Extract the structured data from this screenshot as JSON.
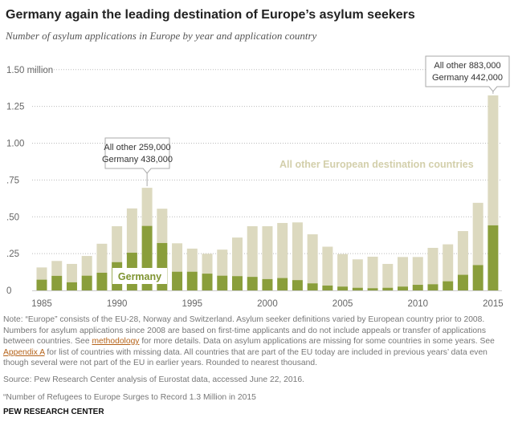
{
  "chart_data": {
    "type": "bar",
    "stacked": true,
    "title": "Germany again the leading destination of Europe’s asylum seekers",
    "subtitle": "Number of asylum applications in Europe by year and application country",
    "unit": "million",
    "ylim": [
      0,
      1.5
    ],
    "y_ticks": [
      {
        "v": 0,
        "label": "0"
      },
      {
        "v": 0.25,
        "label": ".25"
      },
      {
        "v": 0.5,
        "label": ".50"
      },
      {
        "v": 0.75,
        "label": ".75"
      },
      {
        "v": 1.0,
        "label": "1.00"
      },
      {
        "v": 1.25,
        "label": "1.25"
      },
      {
        "v": 1.5,
        "label": "1.50 million"
      }
    ],
    "x_ticks": [
      1985,
      1990,
      1995,
      2000,
      2005,
      2010,
      2015
    ],
    "categories": [
      1985,
      1986,
      1987,
      1988,
      1989,
      1990,
      1991,
      1992,
      1993,
      1994,
      1995,
      1996,
      1997,
      1998,
      1999,
      2000,
      2001,
      2002,
      2003,
      2004,
      2005,
      2006,
      2007,
      2008,
      2009,
      2010,
      2011,
      2012,
      2013,
      2014,
      2015
    ],
    "series": [
      {
        "name": "Germany",
        "color": "#8a9e3b",
        "values": [
          0.073,
          0.099,
          0.055,
          0.1,
          0.12,
          0.192,
          0.256,
          0.438,
          0.322,
          0.127,
          0.127,
          0.114,
          0.1,
          0.097,
          0.092,
          0.077,
          0.084,
          0.07,
          0.048,
          0.033,
          0.026,
          0.018,
          0.015,
          0.018,
          0.026,
          0.038,
          0.042,
          0.062,
          0.106,
          0.172,
          0.442
        ]
      },
      {
        "name": "All other European destination countries",
        "color": "#dcd9bf",
        "values": [
          0.083,
          0.101,
          0.125,
          0.134,
          0.197,
          0.244,
          0.301,
          0.259,
          0.233,
          0.193,
          0.157,
          0.135,
          0.177,
          0.262,
          0.344,
          0.359,
          0.374,
          0.392,
          0.333,
          0.264,
          0.221,
          0.193,
          0.214,
          0.162,
          0.201,
          0.189,
          0.247,
          0.251,
          0.297,
          0.423,
          0.883
        ]
      }
    ],
    "annotations": [
      {
        "year": 1992,
        "lines": [
          "All other 259,000",
          "Germany 438,000"
        ]
      },
      {
        "year": 2015,
        "lines": [
          "All other 883,000",
          "Germany 442,000"
        ]
      }
    ],
    "series_labels": {
      "germany": "Germany",
      "other": "All other European destination countries"
    },
    "grid": true
  },
  "footer": {
    "note_a": "Note: “Europe” consists of the EU-28, Norway and Switzerland. Asylum seeker definitions varied by European country prior to 2008. Numbers for asylum applications since 2008 are based on first-time applicants and do not include appeals or transfer of applications between countries. See ",
    "link1": "methodology",
    "note_b": " for more details. Data on asylum applications are missing for some countries in some years. See ",
    "link2": "Appendix A",
    "note_c": " for list of countries with missing data. All countries that are part of the EU today are included in previous years’ data even though several were not part of the EU in earlier years. Rounded to nearest thousand.",
    "source": "Source: Pew Research Center analysis of Eurostat data, accessed June 22, 2016.",
    "ref": "“Number of Refugees to Europe Surges to Record 1.3 Million in 2015",
    "org": "PEW RESEARCH CENTER"
  }
}
